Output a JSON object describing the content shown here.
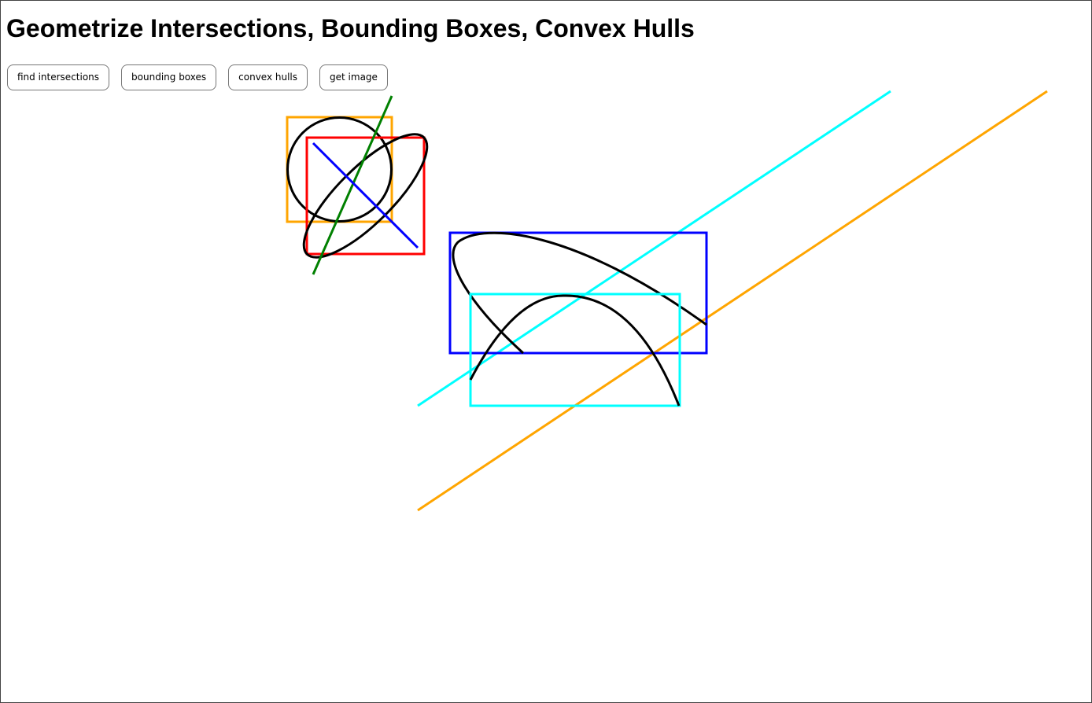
{
  "header": {
    "title": "Geometrize Intersections, Bounding Boxes, Convex Hulls"
  },
  "toolbar": {
    "buttons": [
      {
        "label": "find intersections",
        "name": "find-intersections-button"
      },
      {
        "label": "bounding boxes",
        "name": "bounding-boxes-button"
      },
      {
        "label": "convex hulls",
        "name": "convex-hulls-button"
      },
      {
        "label": "get image",
        "name": "get-image-button"
      }
    ]
  },
  "colors": {
    "curve": "#000000",
    "orange": "#ffa500",
    "red": "#ff0000",
    "blue": "#0000ff",
    "cyan": "#00ffff",
    "green": "#008000"
  }
}
